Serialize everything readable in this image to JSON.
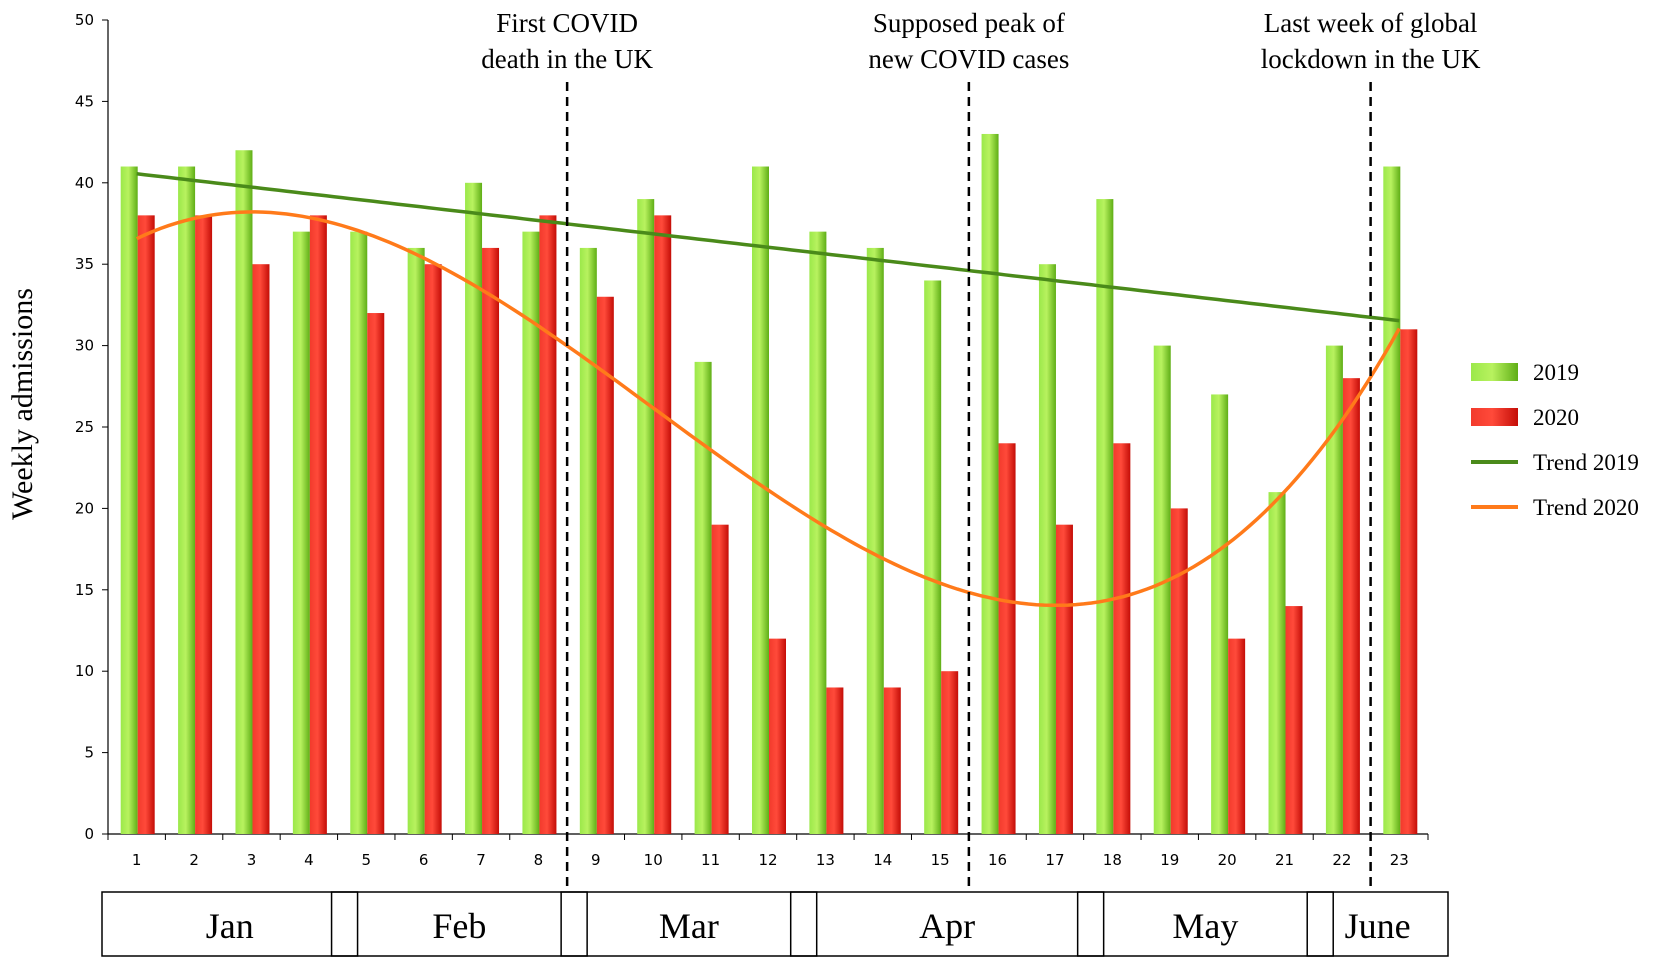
{
  "chart_data": {
    "type": "bar",
    "title": "",
    "xlabel": "",
    "ylabel": "Weekly admissions",
    "ylim": [
      0,
      50
    ],
    "y_ticks": [
      0,
      5,
      10,
      15,
      20,
      25,
      30,
      35,
      40,
      45,
      50
    ],
    "categories": [
      "1",
      "2",
      "3",
      "4",
      "5",
      "6",
      "7",
      "8",
      "9",
      "10",
      "11",
      "12",
      "13",
      "14",
      "15",
      "16",
      "17",
      "18",
      "19",
      "20",
      "21",
      "22",
      "23"
    ],
    "series": [
      {
        "name": "2019",
        "color": "#7ed321",
        "values": [
          41,
          41,
          42,
          37,
          37,
          36,
          40,
          37,
          36,
          39,
          29,
          41,
          37,
          36,
          34,
          43,
          35,
          39,
          30,
          27,
          21,
          30,
          41
        ]
      },
      {
        "name": "2020",
        "color": "#e8160f",
        "values": [
          38,
          38,
          35,
          38,
          32,
          35,
          36,
          38,
          33,
          38,
          19,
          12,
          9,
          9,
          10,
          24,
          19,
          24,
          20,
          12,
          14,
          28,
          31
        ]
      }
    ],
    "trend_lines": [
      {
        "name": "Trend 2019",
        "color": "#4a8a1a",
        "kind": "linear"
      },
      {
        "name": "Trend 2020",
        "color": "#ff7a1a",
        "kind": "polynomial"
      }
    ],
    "months": [
      {
        "label": "Jan",
        "weeks": [
          1,
          4
        ]
      },
      {
        "label": "Feb",
        "weeks": [
          5,
          8
        ]
      },
      {
        "label": "Mar",
        "weeks": [
          9,
          12
        ]
      },
      {
        "label": "Apr",
        "weeks": [
          13,
          17
        ]
      },
      {
        "label": "May",
        "weeks": [
          18,
          21
        ]
      },
      {
        "label": "June",
        "weeks": [
          22,
          23
        ]
      }
    ],
    "annotations": [
      {
        "lines": [
          "First COVID",
          "death in the UK"
        ],
        "after_week": 8
      },
      {
        "lines": [
          "Supposed peak of",
          "new COVID cases"
        ],
        "after_week": 15
      },
      {
        "lines": [
          "Last week of global",
          "lockdown in the UK"
        ],
        "after_week": 22
      }
    ],
    "legend": {
      "position": "right",
      "entries": [
        "2019",
        "2020",
        "Trend 2019",
        "Trend 2020"
      ]
    },
    "grid": false
  }
}
